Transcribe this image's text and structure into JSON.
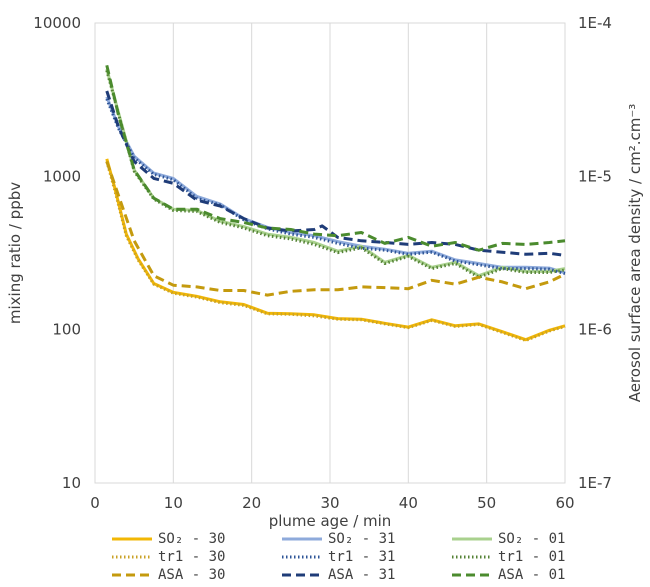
{
  "chart_data": {
    "type": "line",
    "xlabel": "plume age / min",
    "ylabel": "mixing ratio / ppbv",
    "y2label": "Aerosol surface area density / cm².cm⁻³",
    "xlim": [
      0,
      60
    ],
    "ylim": [
      10,
      10000
    ],
    "y2lim": [
      1e-07,
      0.0001
    ],
    "yscale": "log",
    "y2scale": "log",
    "grid": "vertical",
    "legend_position": "bottom",
    "x_ticks": [
      "0",
      "10",
      "20",
      "30",
      "40",
      "50",
      "60"
    ],
    "y_ticks": [
      "10",
      "100",
      "1000",
      "10000"
    ],
    "y2_ticks": [
      "1E-7",
      "1E-6",
      "1E-5",
      "1E-4"
    ],
    "series": [
      {
        "name": "SO₂ - 30",
        "color": "#f2b705",
        "dash": "solid",
        "axis": "left",
        "x": [
          1.5,
          2.5,
          4,
          5.5,
          7.5,
          10,
          13,
          16,
          19,
          22,
          25,
          28,
          31,
          34,
          37,
          40,
          43,
          46,
          49,
          52,
          55,
          58,
          60
        ],
        "y": [
          1300,
          850,
          420,
          290,
          200,
          175,
          165,
          152,
          146,
          128,
          127,
          125,
          118,
          117,
          110,
          104,
          116,
          106,
          109,
          97,
          86,
          99,
          106
        ]
      },
      {
        "name": "SO₂ - 31",
        "color": "#8eaadb",
        "dash": "solid",
        "axis": "left",
        "x": [
          1.5,
          3,
          5,
          7.5,
          10,
          13,
          16,
          19,
          22,
          25,
          28,
          31,
          34,
          37,
          40,
          43,
          46,
          49,
          52,
          55,
          58,
          60
        ],
        "y": [
          3300,
          2100,
          1350,
          1050,
          970,
          740,
          660,
          530,
          465,
          430,
          410,
          375,
          350,
          335,
          315,
          325,
          285,
          270,
          255,
          255,
          252,
          235
        ]
      },
      {
        "name": "SO₂ - 01",
        "color": "#a9d18e",
        "dash": "solid",
        "axis": "left",
        "x": [
          1.5,
          3,
          5,
          7.5,
          10,
          13,
          16,
          19,
          22,
          25,
          28,
          31,
          34,
          37,
          40,
          43,
          46,
          49,
          52,
          55,
          58,
          60
        ],
        "y": [
          5000,
          2600,
          1100,
          720,
          610,
          600,
          510,
          470,
          420,
          400,
          370,
          325,
          350,
          275,
          305,
          255,
          275,
          225,
          255,
          240,
          240,
          250
        ]
      },
      {
        "name": "tr1 - 30",
        "color": "#c9a227",
        "dash": "dotted",
        "axis": "left",
        "x": [
          1.5,
          2.5,
          4,
          5.5,
          7.5,
          10,
          13,
          16,
          19,
          22,
          25,
          28,
          31,
          34,
          37,
          40,
          43,
          46,
          49,
          52,
          55,
          58,
          60
        ],
        "y": [
          1250,
          820,
          410,
          285,
          198,
          173,
          163,
          150,
          144,
          127,
          126,
          123,
          117,
          116,
          109,
          103,
          115,
          105,
          108,
          96,
          85,
          98,
          105
        ]
      },
      {
        "name": "tr1 - 31",
        "color": "#2e5597",
        "dash": "dotted",
        "axis": "left",
        "x": [
          1.5,
          3,
          5,
          7.5,
          10,
          13,
          16,
          19,
          22,
          25,
          28,
          31,
          34,
          37,
          40,
          43,
          46,
          49,
          52,
          55,
          58,
          60
        ],
        "y": [
          3200,
          2050,
          1320,
          1030,
          950,
          720,
          650,
          520,
          455,
          420,
          400,
          365,
          340,
          330,
          310,
          320,
          280,
          265,
          250,
          250,
          248,
          232
        ]
      },
      {
        "name": "tr1 - 01",
        "color": "#548235",
        "dash": "dotted",
        "axis": "left",
        "x": [
          1.5,
          3,
          5,
          7.5,
          10,
          13,
          16,
          19,
          22,
          25,
          28,
          31,
          34,
          37,
          40,
          43,
          46,
          49,
          52,
          55,
          58,
          60
        ],
        "y": [
          4900,
          2550,
          1080,
          710,
          600,
          590,
          500,
          460,
          410,
          390,
          360,
          318,
          342,
          270,
          300,
          250,
          270,
          220,
          250,
          236,
          236,
          245
        ]
      },
      {
        "name": "ASA - 30",
        "color": "#c49a0e",
        "dash": "dashed",
        "axis": "right",
        "x": [
          1.5,
          3,
          5,
          7.5,
          10,
          13,
          16,
          19,
          22,
          25,
          28,
          31,
          34,
          37,
          40,
          43,
          46,
          49,
          52,
          55,
          58,
          60
        ],
        "y": [
          1.25e-05,
          7.5e-06,
          3.8e-06,
          2.25e-06,
          1.95e-06,
          1.9e-06,
          1.8e-06,
          1.8e-06,
          1.68e-06,
          1.78e-06,
          1.82e-06,
          1.82e-06,
          1.9e-06,
          1.88e-06,
          1.85e-06,
          2.1e-06,
          1.98e-06,
          2.2e-06,
          2.05e-06,
          1.85e-06,
          2.05e-06,
          2.3e-06
        ]
      },
      {
        "name": "ASA - 31",
        "color": "#1f3c78",
        "dash": "dashed",
        "axis": "right",
        "x": [
          1.5,
          3,
          5,
          7.5,
          10,
          13,
          16,
          19,
          22,
          25,
          28,
          29,
          31,
          34,
          37,
          40,
          43,
          46,
          49,
          52,
          55,
          58,
          60
        ],
        "y": [
          3.6e-05,
          2.1e-05,
          1.25e-05,
          9.7e-06,
          9e-06,
          7e-06,
          6.4e-06,
          5.3e-06,
          4.6e-06,
          4.4e-06,
          4.5e-06,
          4.75e-06,
          4e-06,
          3.8e-06,
          3.7e-06,
          3.6e-06,
          3.7e-06,
          3.6e-06,
          3.3e-06,
          3.2e-06,
          3.1e-06,
          3.15e-06,
          3.05e-06
        ]
      },
      {
        "name": "ASA - 01",
        "color": "#4b8b2e",
        "dash": "dashed",
        "axis": "right",
        "x": [
          1.5,
          3,
          5,
          7.5,
          10,
          13,
          16,
          19,
          22,
          25,
          28,
          31,
          34,
          37,
          40,
          43,
          46,
          49,
          52,
          55,
          58,
          60
        ],
        "y": [
          5.3e-05,
          2.5e-05,
          1.1e-05,
          7.2e-06,
          6.1e-06,
          6.1e-06,
          5.3e-06,
          5e-06,
          4.6e-06,
          4.5e-06,
          4.2e-06,
          4.1e-06,
          4.3e-06,
          3.65e-06,
          4e-06,
          3.5e-06,
          3.7e-06,
          3.3e-06,
          3.65e-06,
          3.6e-06,
          3.7e-06,
          3.8e-06
        ]
      }
    ],
    "legend": [
      {
        "label": "SO₂ - 30",
        "series": 0
      },
      {
        "label": "SO₂ - 31",
        "series": 1
      },
      {
        "label": "SO₂ - 01",
        "series": 2
      },
      {
        "label": "tr1 - 30",
        "series": 3
      },
      {
        "label": "tr1 - 31",
        "series": 4
      },
      {
        "label": "tr1 - 01",
        "series": 5
      },
      {
        "label": "ASA - 30",
        "series": 6
      },
      {
        "label": "ASA - 31",
        "series": 7
      },
      {
        "label": "ASA - 01",
        "series": 8
      }
    ]
  }
}
